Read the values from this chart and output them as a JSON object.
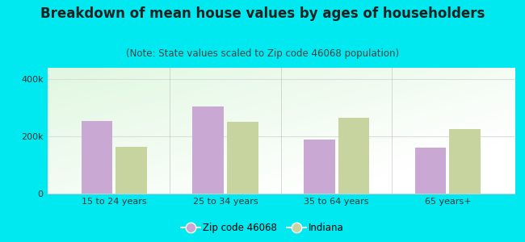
{
  "title": "Breakdown of mean house values by ages of householders",
  "subtitle": "(Note: State values scaled to Zip code 46068 population)",
  "categories": [
    "15 to 24 years",
    "25 to 34 years",
    "35 to 64 years",
    "65 years+"
  ],
  "zip_values": [
    255000,
    305000,
    190000,
    160000
  ],
  "indiana_values": [
    165000,
    250000,
    265000,
    225000
  ],
  "zip_color": "#c9a8d4",
  "indiana_color": "#c8d4a0",
  "background_outer": "#00e8f0",
  "ylim": [
    0,
    440000
  ],
  "ytick_vals": [
    0,
    200000,
    400000
  ],
  "ytick_labels": [
    "0",
    "200k",
    "400k"
  ],
  "legend_zip_label": "Zip code 46068",
  "legend_indiana_label": "Indiana",
  "title_fontsize": 12,
  "subtitle_fontsize": 8.5,
  "axis_fontsize": 8,
  "legend_fontsize": 8.5,
  "bar_width": 0.28,
  "bar_gap": 0.03,
  "separator_color": "#aaaaaa",
  "grid_color": "#dddddd"
}
